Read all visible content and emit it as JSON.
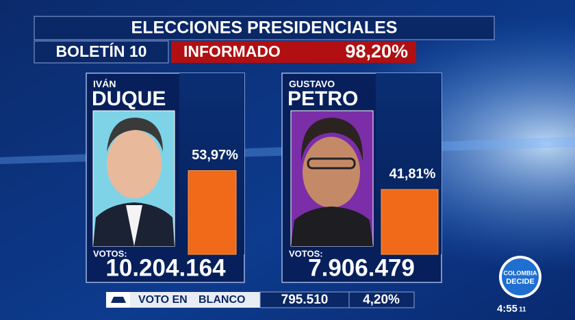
{
  "header": {
    "title": "ELECCIONES PRESIDENCIALES",
    "bulletin": "BOLETÍN 10",
    "reported_label": "INFORMADO",
    "reported_percent": "98,20%"
  },
  "candidates": [
    {
      "first_name": "IVÁN",
      "last_name": "DUQUE",
      "percent": {
        "value": 53.97,
        "label": "53,97%"
      },
      "votes_label": "VOTOS:",
      "votes": "10.204.164"
    },
    {
      "first_name": "GUSTAVO",
      "last_name": "PETRO",
      "percent": {
        "value": 41.81,
        "label": "41,81%"
      },
      "votes_label": "VOTOS:",
      "votes": "7.906.479"
    }
  ],
  "blank_vote": {
    "label_start": "VOTO EN",
    "label_end": "BLANCO",
    "votes": "795.510",
    "percent": "4,20%"
  },
  "logo": {
    "line1": "COLOMBIA",
    "line2": "DECIDE"
  },
  "clock": {
    "time": "4:55",
    "seconds": "11"
  }
}
